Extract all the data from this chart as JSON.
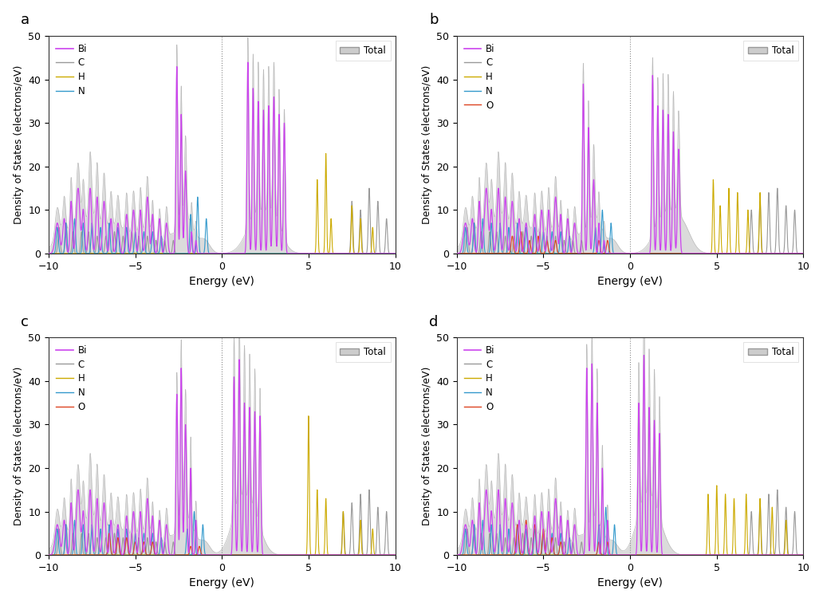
{
  "panels": [
    "a",
    "b",
    "c",
    "d"
  ],
  "xlim": [
    -10,
    10
  ],
  "ylim": [
    0,
    50
  ],
  "xlabel": "Energy (eV)",
  "ylabel": "Density of States (electrons/eV)",
  "yticks": [
    0,
    10,
    20,
    30,
    40,
    50
  ],
  "xticks": [
    -10,
    -5,
    0,
    5,
    10
  ],
  "colors": {
    "Bi": "#cc44ee",
    "C": "#999999",
    "H": "#ccaa00",
    "N": "#3399cc",
    "O": "#dd4422",
    "Total": "#cccccc"
  },
  "figsize": [
    10.32,
    7.55
  ],
  "dpi": 100
}
